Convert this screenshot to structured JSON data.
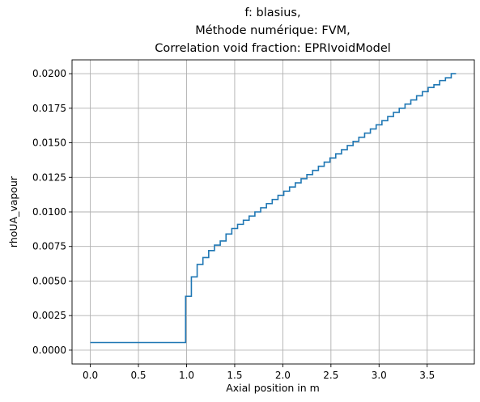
{
  "chart_data": {
    "type": "line",
    "title": [
      "f: blasius,",
      "Méthode numérique: FVM,",
      "Correlation void fraction: EPRIvoidModel"
    ],
    "xlabel": "Axial position in m",
    "ylabel": "rhoUA_vapour",
    "xlim": [
      -0.19,
      3.99
    ],
    "ylim": [
      -0.001,
      0.021
    ],
    "xticks": [
      0.0,
      0.5,
      1.0,
      1.5,
      2.0,
      2.5,
      3.0,
      3.5
    ],
    "xtick_labels": [
      "0.0",
      "0.5",
      "1.0",
      "1.5",
      "2.0",
      "2.5",
      "3.0",
      "3.5"
    ],
    "yticks": [
      0.0,
      0.0025,
      0.005,
      0.0075,
      0.01,
      0.0125,
      0.015,
      0.0175,
      0.02
    ],
    "ytick_labels": [
      "0.0000",
      "0.0025",
      "0.0050",
      "0.0075",
      "0.0100",
      "0.0125",
      "0.0150",
      "0.0175",
      "0.0200"
    ],
    "grid": true,
    "colors": {
      "series": "#1f77b4"
    },
    "series": [
      {
        "step": "post",
        "x": [
          0.0,
          0.99,
          1.05,
          1.11,
          1.17,
          1.23,
          1.29,
          1.35,
          1.41,
          1.47,
          1.53,
          1.59,
          1.65,
          1.71,
          1.77,
          1.83,
          1.89,
          1.95,
          2.01,
          2.07,
          2.13,
          2.19,
          2.25,
          2.31,
          2.37,
          2.43,
          2.49,
          2.55,
          2.61,
          2.67,
          2.73,
          2.79,
          2.85,
          2.91,
          2.97,
          3.03,
          3.09,
          3.15,
          3.21,
          3.27,
          3.33,
          3.39,
          3.45,
          3.51,
          3.57,
          3.63,
          3.69,
          3.75,
          3.8
        ],
        "y": [
          0.00055,
          0.0039,
          0.0053,
          0.0062,
          0.0067,
          0.0072,
          0.0076,
          0.0079,
          0.0084,
          0.0088,
          0.0091,
          0.0094,
          0.0097,
          0.01,
          0.0103,
          0.0106,
          0.0109,
          0.0112,
          0.0115,
          0.0118,
          0.0121,
          0.0124,
          0.0127,
          0.013,
          0.0133,
          0.0136,
          0.0139,
          0.0142,
          0.0145,
          0.0148,
          0.0151,
          0.0154,
          0.0157,
          0.016,
          0.0163,
          0.0166,
          0.0169,
          0.0172,
          0.0175,
          0.0178,
          0.0181,
          0.0184,
          0.0187,
          0.019,
          0.0192,
          0.0195,
          0.0197,
          0.02,
          0.02
        ]
      }
    ]
  }
}
